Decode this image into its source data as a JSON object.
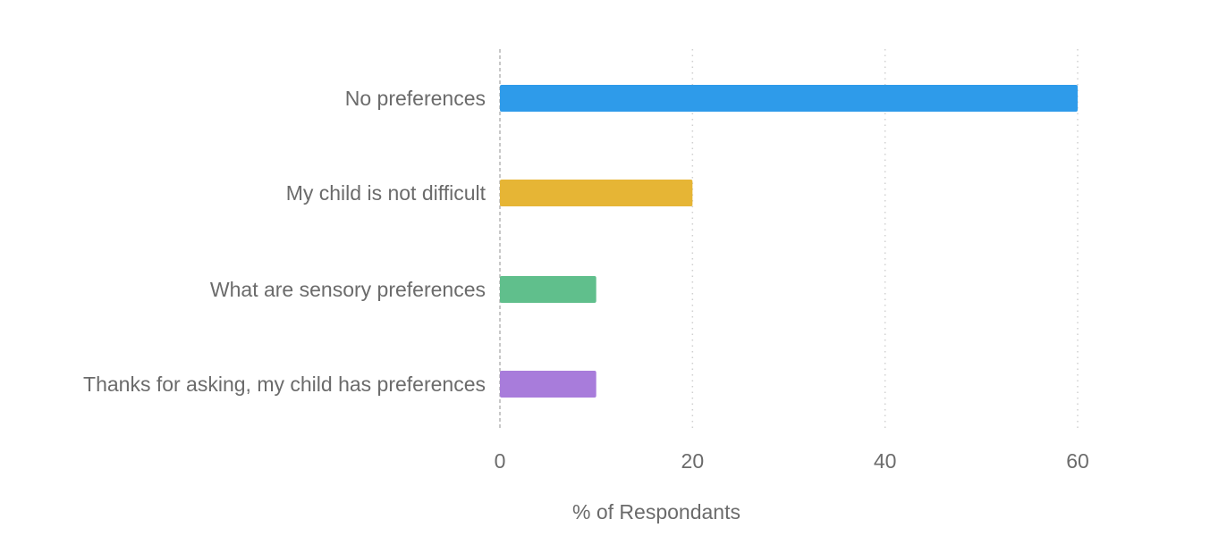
{
  "chart_data": {
    "type": "bar",
    "orientation": "horizontal",
    "categories": [
      "No preferences",
      "My child is not difficult",
      "What are sensory preferences",
      "Thanks for asking, my child has preferences"
    ],
    "values": [
      60,
      20,
      10,
      10
    ],
    "colors": [
      "#2e9bea",
      "#e6b535",
      "#60bf8c",
      "#a87cdb"
    ],
    "xlabel": "% of Respondants",
    "ylabel": "",
    "xlim": [
      0,
      70
    ],
    "xticks": [
      "0",
      "20",
      "40",
      "60"
    ],
    "grid": true
  }
}
